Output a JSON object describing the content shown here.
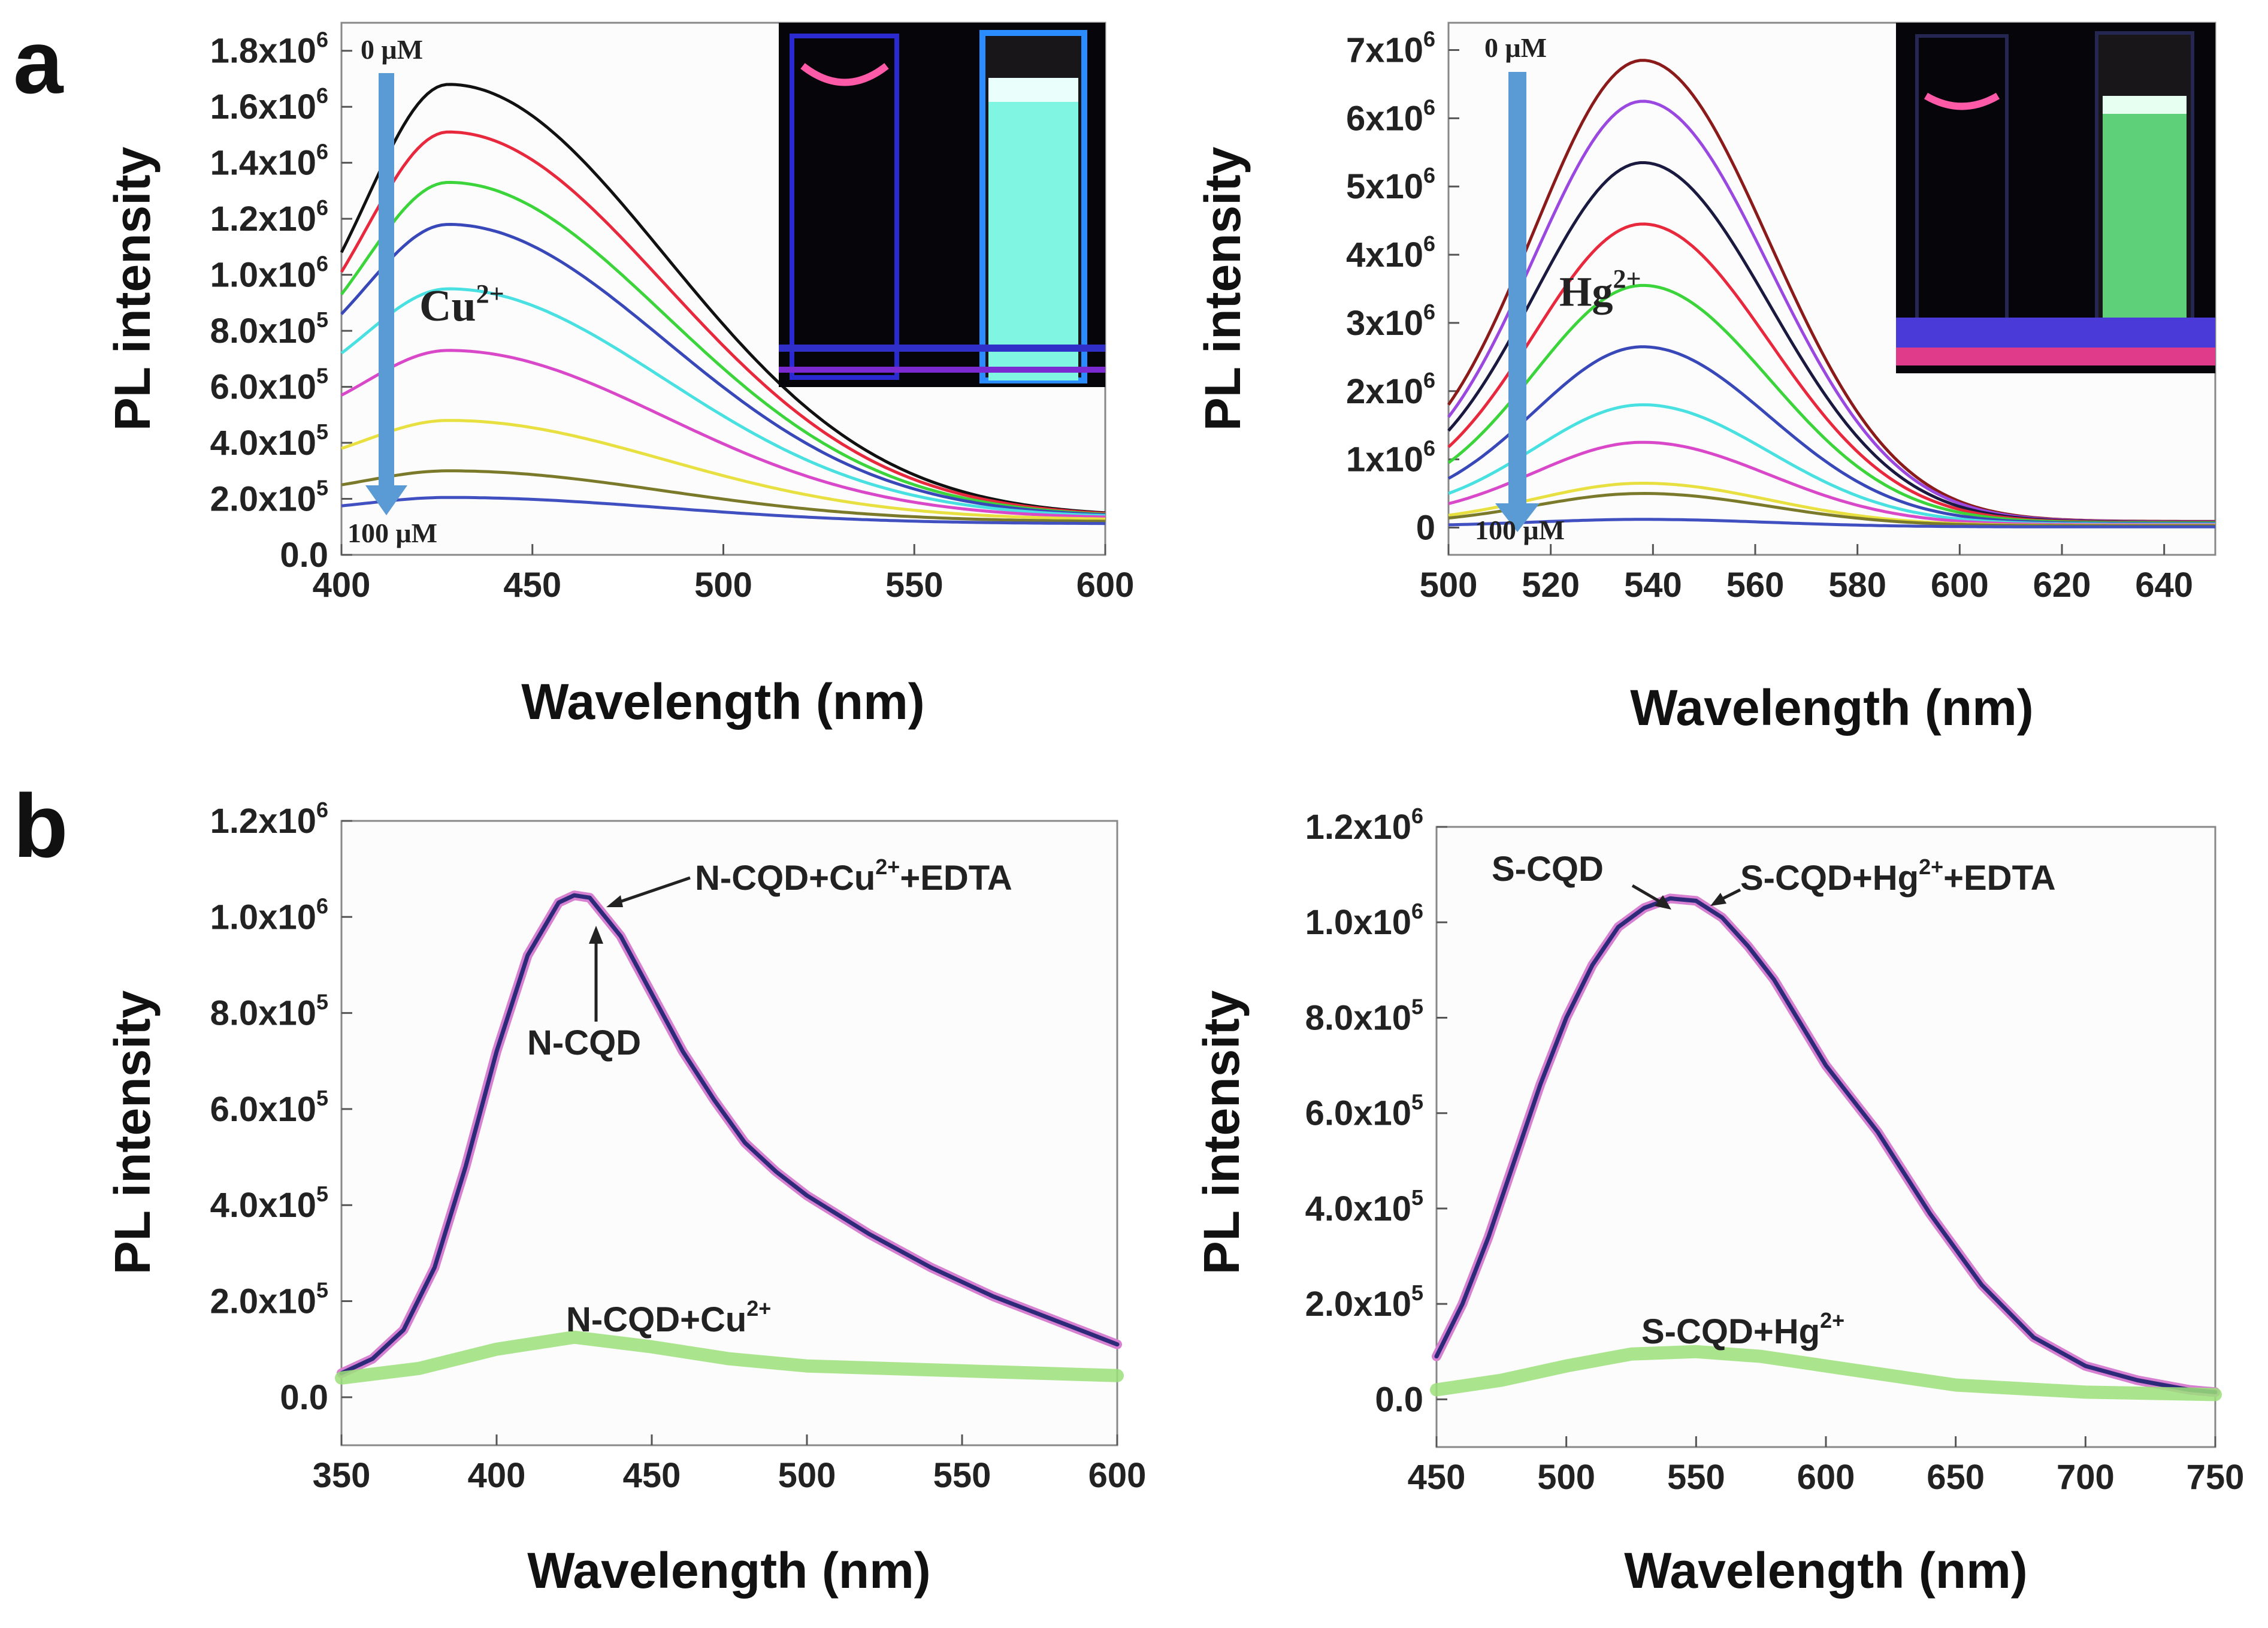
{
  "panels": {
    "a": "a",
    "b": "b"
  },
  "chart_data": [
    {
      "type": "line",
      "panel": "a",
      "xlabel": "Wavelength (nm)",
      "ylabel": "PL intensity",
      "xlim": [
        400,
        600
      ],
      "ylim": [
        0,
        1900000
      ],
      "xticks": [
        400,
        450,
        500,
        550,
        600
      ],
      "yticks": [
        0,
        200000,
        400000,
        600000,
        800000,
        1000000,
        1200000,
        1400000,
        1600000,
        1800000
      ],
      "ytick_labels": [
        {
          "base": "0.0",
          "exp": ""
        },
        {
          "base": "2.0x10",
          "exp": "5"
        },
        {
          "base": "4.0x10",
          "exp": "5"
        },
        {
          "base": "6.0x10",
          "exp": "5"
        },
        {
          "base": "8.0x10",
          "exp": "5"
        },
        {
          "base": "1.0x10",
          "exp": "6"
        },
        {
          "base": "1.2x10",
          "exp": "6"
        },
        {
          "base": "1.4x10",
          "exp": "6"
        },
        {
          "base": "1.6x10",
          "exp": "6"
        },
        {
          "base": "1.8x10",
          "exp": "6"
        }
      ],
      "peak_x": 428,
      "start_x": 400,
      "end_x": 600,
      "series": [
        {
          "color": "#111111",
          "peak": 1680000,
          "start": 1080000,
          "end": 150000
        },
        {
          "color": "#e8283c",
          "peak": 1510000,
          "start": 1010000,
          "end": 148000
        },
        {
          "color": "#3bd43b",
          "peak": 1330000,
          "start": 930000,
          "end": 145000
        },
        {
          "color": "#3848b8",
          "peak": 1180000,
          "start": 860000,
          "end": 143000
        },
        {
          "color": "#48e0e0",
          "peak": 950000,
          "start": 720000,
          "end": 140000
        },
        {
          "color": "#d848c8",
          "peak": 730000,
          "start": 570000,
          "end": 135000
        },
        {
          "color": "#e8e040",
          "peak": 480000,
          "start": 380000,
          "end": 128000
        },
        {
          "color": "#7a7a2a",
          "peak": 300000,
          "start": 250000,
          "end": 120000
        },
        {
          "color": "#4050c0",
          "peak": 205000,
          "start": 175000,
          "end": 112000
        }
      ],
      "annotations": {
        "top": "0 μM",
        "bottom": "100 μM",
        "ion_base": "Cu",
        "ion_sup": "2+"
      },
      "arrow_color": "#5b9bd5"
    },
    {
      "type": "line",
      "panel": "a",
      "xlabel": "Wavelength (nm)",
      "ylabel": "PL intensity",
      "xlim": [
        500,
        650
      ],
      "ylim": [
        -400000,
        7400000
      ],
      "xticks": [
        500,
        520,
        540,
        560,
        580,
        600,
        620,
        640
      ],
      "yticks": [
        0,
        1000000,
        2000000,
        3000000,
        4000000,
        5000000,
        6000000,
        7000000
      ],
      "ytick_labels": [
        {
          "base": "0",
          "exp": ""
        },
        {
          "base": "1x10",
          "exp": "6"
        },
        {
          "base": "2x10",
          "exp": "6"
        },
        {
          "base": "3x10",
          "exp": "6"
        },
        {
          "base": "4x10",
          "exp": "6"
        },
        {
          "base": "5x10",
          "exp": "6"
        },
        {
          "base": "6x10",
          "exp": "6"
        },
        {
          "base": "7x10",
          "exp": "6"
        }
      ],
      "peak_x": 538,
      "start_x": 500,
      "end_x": 650,
      "series": [
        {
          "color": "#8b1a1a",
          "peak": 6850000,
          "start": 1800000,
          "end": 90000
        },
        {
          "color": "#9b48e0",
          "peak": 6250000,
          "start": 1620000,
          "end": 85000
        },
        {
          "color": "#1a1a40",
          "peak": 5350000,
          "start": 1420000,
          "end": 80000
        },
        {
          "color": "#e8283c",
          "peak": 4450000,
          "start": 1180000,
          "end": 75000
        },
        {
          "color": "#3bd43b",
          "peak": 3550000,
          "start": 950000,
          "end": 70000
        },
        {
          "color": "#3848b8",
          "peak": 2650000,
          "start": 720000,
          "end": 60000
        },
        {
          "color": "#48e0e0",
          "peak": 1800000,
          "start": 500000,
          "end": 50000
        },
        {
          "color": "#d848c8",
          "peak": 1250000,
          "start": 350000,
          "end": 40000
        },
        {
          "color": "#e8e040",
          "peak": 650000,
          "start": 180000,
          "end": 30000
        },
        {
          "color": "#7a7a2a",
          "peak": 500000,
          "start": 140000,
          "end": 25000
        },
        {
          "color": "#4050c0",
          "peak": 120000,
          "start": 40000,
          "end": 10000
        }
      ],
      "annotations": {
        "top": "0 μM",
        "bottom": "100 μM",
        "ion_base": "Hg",
        "ion_sup": "2+"
      },
      "arrow_color": "#5b9bd5"
    },
    {
      "type": "line",
      "panel": "b",
      "xlabel": "Wavelength (nm)",
      "ylabel": "PL intensity",
      "xlim": [
        350,
        600
      ],
      "ylim": [
        -100000,
        1200000
      ],
      "xticks": [
        350,
        400,
        450,
        500,
        550,
        600
      ],
      "yticks": [
        0,
        200000,
        400000,
        600000,
        800000,
        1000000,
        1200000
      ],
      "ytick_labels": [
        {
          "base": "0.0",
          "exp": ""
        },
        {
          "base": "2.0x10",
          "exp": "5"
        },
        {
          "base": "4.0x10",
          "exp": "5"
        },
        {
          "base": "6.0x10",
          "exp": "5"
        },
        {
          "base": "8.0x10",
          "exp": "5"
        },
        {
          "base": "1.0x10",
          "exp": "6"
        },
        {
          "base": "1.2x10",
          "exp": "6"
        }
      ],
      "series": [
        {
          "label": "N-CQD",
          "color": "#d77fd0",
          "x": [
            350,
            360,
            370,
            380,
            390,
            400,
            410,
            420,
            425,
            430,
            440,
            450,
            460,
            470,
            480,
            490,
            500,
            520,
            540,
            560,
            580,
            600
          ],
          "y": [
            50000,
            80000,
            140000,
            270000,
            480000,
            720000,
            920000,
            1030000,
            1045000,
            1040000,
            960000,
            840000,
            720000,
            620000,
            530000,
            470000,
            420000,
            340000,
            270000,
            210000,
            160000,
            110000
          ]
        },
        {
          "label": "N-CQD+Cu2+EDTA",
          "color": "#2e2a7a",
          "x": [
            350,
            360,
            370,
            380,
            390,
            400,
            410,
            420,
            425,
            430,
            440,
            450,
            460,
            470,
            480,
            490,
            500,
            520,
            540,
            560,
            580,
            600
          ],
          "y": [
            50000,
            80000,
            140000,
            270000,
            480000,
            720000,
            920000,
            1030000,
            1045000,
            1040000,
            960000,
            840000,
            720000,
            620000,
            530000,
            470000,
            420000,
            340000,
            270000,
            210000,
            160000,
            110000
          ]
        },
        {
          "label": "N-CQD+Cu2+",
          "color": "#9be07a",
          "x": [
            350,
            375,
            400,
            425,
            450,
            475,
            500,
            550,
            600
          ],
          "y": [
            40000,
            60000,
            100000,
            125000,
            105000,
            80000,
            65000,
            55000,
            45000
          ]
        }
      ],
      "annotations": [
        {
          "base": "N-CQD+Cu",
          "sup": "2+",
          "tail": "+EDTA"
        },
        {
          "base": "N-CQD",
          "sup": "",
          "tail": ""
        },
        {
          "base": "N-CQD+Cu",
          "sup": "2+",
          "tail": ""
        }
      ]
    },
    {
      "type": "line",
      "panel": "b",
      "xlabel": "Wavelength (nm)",
      "ylabel": "PL intensity",
      "xlim": [
        450,
        750
      ],
      "ylim": [
        -100000,
        1200000
      ],
      "xticks": [
        450,
        500,
        550,
        600,
        650,
        700,
        750
      ],
      "yticks": [
        0,
        200000,
        400000,
        600000,
        800000,
        1000000,
        1200000
      ],
      "ytick_labels": [
        {
          "base": "0.0",
          "exp": ""
        },
        {
          "base": "2.0x10",
          "exp": "5"
        },
        {
          "base": "4.0x10",
          "exp": "5"
        },
        {
          "base": "6.0x10",
          "exp": "5"
        },
        {
          "base": "8.0x10",
          "exp": "5"
        },
        {
          "base": "1.0x10",
          "exp": "6"
        },
        {
          "base": "1.2x10",
          "exp": "6"
        }
      ],
      "series": [
        {
          "label": "S-CQD",
          "color": "#d77fd0",
          "x": [
            450,
            460,
            470,
            480,
            490,
            500,
            510,
            520,
            530,
            540,
            550,
            560,
            570,
            580,
            590,
            600,
            620,
            640,
            660,
            680,
            700,
            720,
            740,
            750
          ],
          "y": [
            90000,
            200000,
            340000,
            500000,
            660000,
            800000,
            910000,
            990000,
            1030000,
            1050000,
            1045000,
            1010000,
            950000,
            880000,
            790000,
            700000,
            560000,
            390000,
            240000,
            130000,
            70000,
            40000,
            20000,
            15000
          ]
        },
        {
          "label": "S-CQD+Hg2+EDTA",
          "color": "#2e2a7a",
          "x": [
            450,
            460,
            470,
            480,
            490,
            500,
            510,
            520,
            530,
            540,
            550,
            560,
            570,
            580,
            590,
            600,
            620,
            640,
            660,
            680,
            700,
            720,
            740,
            750
          ],
          "y": [
            90000,
            200000,
            340000,
            500000,
            660000,
            800000,
            910000,
            990000,
            1030000,
            1050000,
            1045000,
            1010000,
            950000,
            880000,
            790000,
            700000,
            560000,
            390000,
            240000,
            130000,
            70000,
            40000,
            20000,
            15000
          ]
        },
        {
          "label": "S-CQD+Hg2+",
          "color": "#9be07a",
          "x": [
            450,
            475,
            500,
            525,
            550,
            575,
            600,
            625,
            650,
            700,
            750
          ],
          "y": [
            20000,
            40000,
            70000,
            95000,
            100000,
            90000,
            70000,
            50000,
            30000,
            15000,
            10000
          ]
        }
      ],
      "annotations": [
        {
          "base": "S-CQD",
          "sup": "",
          "tail": ""
        },
        {
          "base": "S-CQD+Hg",
          "sup": "2+",
          "tail": "+EDTA"
        },
        {
          "base": "S-CQD+Hg",
          "sup": "2+",
          "tail": ""
        }
      ]
    }
  ]
}
